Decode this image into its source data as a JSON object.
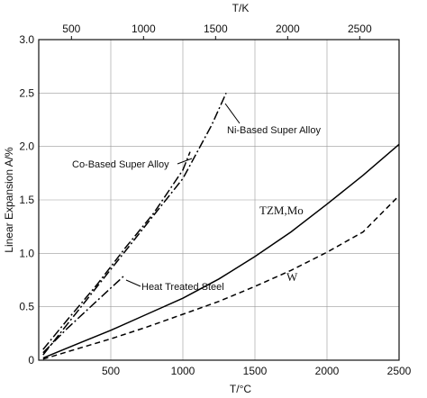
{
  "chart_data": {
    "type": "line",
    "title": "",
    "xlabel": "T/°C",
    "ylabel": "Linear Expansion A/%",
    "x2label": "T/K",
    "xlim": [
      0,
      2500
    ],
    "ylim": [
      0,
      3.0
    ],
    "x2lim": [
      273,
      2773
    ],
    "xticks": [
      500,
      1000,
      1500,
      2000,
      2500
    ],
    "yticks": [
      0,
      0.5,
      1.0,
      1.5,
      2.0,
      2.5,
      3.0
    ],
    "x2ticks": [
      500,
      1000,
      1500,
      2000,
      2500
    ],
    "ytick_labels": [
      "0",
      "0.5",
      "1.0",
      "1.5",
      "2.0",
      "2.5",
      "3.0"
    ],
    "grid": true,
    "series": [
      {
        "name": "Ni-Based Super Alloy",
        "style": "dash-dot",
        "x": [
          30,
          200,
          400,
          600,
          800,
          1000,
          1200,
          1300
        ],
        "y": [
          0.05,
          0.34,
          0.68,
          1.02,
          1.36,
          1.7,
          2.2,
          2.5
        ]
      },
      {
        "name": "Co-Based Super Alloy",
        "style": "dash-dot",
        "x": [
          30,
          200,
          400,
          600,
          800,
          1000,
          1050
        ],
        "y": [
          0.1,
          0.38,
          0.7,
          1.05,
          1.38,
          1.78,
          1.95
        ]
      },
      {
        "name": "Heat Treated Steel",
        "style": "dash-dot",
        "x": [
          30,
          200,
          400,
          600
        ],
        "y": [
          0.07,
          0.3,
          0.55,
          0.8
        ]
      },
      {
        "name": "TZM,Mo",
        "style": "solid",
        "x": [
          30,
          300,
          500,
          750,
          1000,
          1250,
          1500,
          1750,
          2000,
          2250,
          2500
        ],
        "y": [
          0.02,
          0.17,
          0.28,
          0.43,
          0.58,
          0.76,
          0.97,
          1.2,
          1.46,
          1.73,
          2.02
        ]
      },
      {
        "name": "W",
        "style": "dashed",
        "x": [
          30,
          300,
          500,
          750,
          1000,
          1250,
          1500,
          1750,
          2000,
          2250,
          2500
        ],
        "y": [
          0.01,
          0.12,
          0.2,
          0.31,
          0.43,
          0.55,
          0.69,
          0.84,
          1.01,
          1.2,
          1.54
        ]
      }
    ],
    "annotations": [
      {
        "text": "Ni-Based Super Alloy"
      },
      {
        "text": "Co-Based Super Alloy"
      },
      {
        "text": "Heat Treated Steel"
      },
      {
        "text": "TZM,Mo"
      },
      {
        "text": "W"
      }
    ]
  }
}
